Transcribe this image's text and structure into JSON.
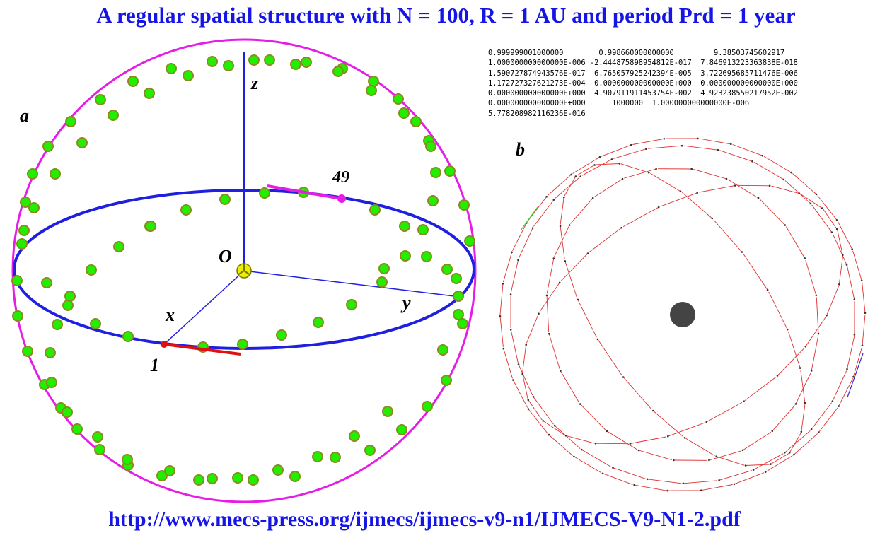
{
  "title": "A regular spatial structure with N = 100, R = 1 AU and period Prd = 1 year",
  "url": "http://www.mecs-press.org/ijmecs/ijmecs-v9-n1/IJMECS-V9-N1-2.pdf",
  "numbers_lines": [
    "0.999999001000000        0.998660000000000         9.38503745602917",
    "1.000000000000000E-006 -2.444875898954812E-017  7.846913223363838E-018",
    "1.590727874943576E-017  6.765057925242394E-005  3.722695685711476E-006",
    "1.172727327621273E-004  0.000000000000000E+000  0.000000000000000E+000",
    "0.000000000000000E+000  4.907911911453754E-002  4.923238550217952E-002",
    "0.000000000000000E+000      1000000  1.000000000000000E-006",
    "5.778208982116236E-016"
  ],
  "panel_a": {
    "panel_label": "a",
    "axis_z_label": "z",
    "axis_x_label": "x",
    "axis_y_label": "y",
    "origin_label": "O",
    "point_1_label": "1",
    "point_49_label": "49",
    "colors": {
      "sphere": "#e51ee5",
      "equator": "#1f1fe0",
      "axes": "#1f1fe0",
      "points_fill": "#22ee00",
      "points_ring": "#8a8a20",
      "origin": "#eeee00",
      "velocity_1": "#e01010",
      "velocity_49": "#e51ee5"
    }
  },
  "panel_b": {
    "panel_label": "b",
    "colors": {
      "orbit_arrows": "#e03030",
      "sun": "#444444",
      "highlight_green": "#33cc33",
      "highlight_blue": "#3030cc"
    }
  }
}
